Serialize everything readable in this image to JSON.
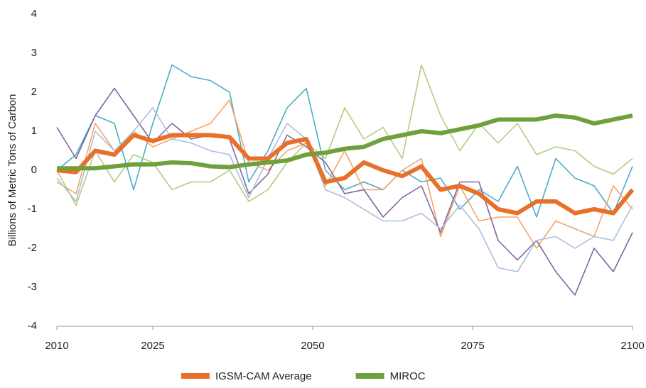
{
  "chart_data": {
    "type": "line",
    "y_label": "Billions of Metric Tons of Carbon",
    "x": [
      2010,
      2013,
      2016,
      2019,
      2022,
      2025,
      2028,
      2031,
      2034,
      2037,
      2040,
      2043,
      2046,
      2049,
      2052,
      2055,
      2058,
      2061,
      2064,
      2067,
      2070,
      2073,
      2076,
      2079,
      2082,
      2085,
      2088,
      2091,
      2094,
      2097,
      2100
    ],
    "series": [
      {
        "color": "#4bacc6",
        "values": [
          0,
          0.4,
          1.4,
          1.2,
          -0.5,
          1.2,
          2.7,
          2.4,
          2.3,
          2.0,
          -0.3,
          0.5,
          1.6,
          2.1,
          0,
          -0.5,
          -0.3,
          -0.5,
          0,
          -0.3,
          -0.2,
          -1.0,
          -0.5,
          -0.8,
          0.1,
          -1.2,
          0.3,
          -0.2,
          -0.4,
          -1.1,
          0.1
        ]
      },
      {
        "color": "#f5a46a",
        "values": [
          -0.3,
          -0.6,
          1.2,
          0.5,
          1.0,
          0.6,
          0.8,
          1.0,
          1.2,
          1.8,
          0.2,
          0,
          0.5,
          0.7,
          -0.4,
          0.5,
          -0.5,
          -0.5,
          0,
          0.3,
          -1.7,
          -0.4,
          -1.3,
          -1.2,
          -1.2,
          -2.0,
          -1.3,
          -1.5,
          -1.7,
          -0.4,
          -1.0
        ]
      },
      {
        "color": "#8064a2",
        "values": [
          1.1,
          0.3,
          1.4,
          2.1,
          1.4,
          0.7,
          1.2,
          0.8,
          0.9,
          0.8,
          -0.6,
          -0.1,
          0.9,
          0.6,
          0.2,
          -0.6,
          -0.5,
          -1.2,
          -0.7,
          -0.4,
          -1.6,
          -0.3,
          -0.3,
          -1.8,
          -2.3,
          -1.8,
          -2.6,
          -3.2,
          -2.0,
          -2.6,
          -1.6
        ]
      },
      {
        "color": "#a9bfdc",
        "values": [
          -0.2,
          -0.8,
          1.0,
          0.5,
          1.0,
          1.6,
          0.8,
          0.7,
          0.5,
          0.4,
          -0.7,
          0.3,
          1.2,
          0.8,
          -0.5,
          -0.7,
          -1.0,
          -1.3,
          -1.3,
          -1.1,
          -1.5,
          -0.9,
          -1.5,
          -2.5,
          -2.6,
          -1.8,
          -1.7,
          -2.0,
          -1.7,
          -1.8,
          -0.9
        ]
      },
      {
        "color": "#b3cc80",
        "values": [
          0,
          -0.9,
          0.5,
          -0.3,
          0.4,
          0.2,
          -0.5,
          -0.3,
          -0.3,
          0.0,
          -0.8,
          -0.5,
          0.2,
          0.7,
          0.3,
          1.6,
          0.8,
          1.1,
          0.3,
          2.7,
          1.4,
          0.5,
          1.2,
          0.7,
          1.2,
          0.4,
          0.6,
          0.5,
          0.1,
          -0.1,
          0.3
        ]
      },
      {
        "name": "IGSM-CAM Average",
        "color": "#e8702a",
        "values": [
          0,
          -0.05,
          0.5,
          0.4,
          0.9,
          0.75,
          0.9,
          0.9,
          0.9,
          0.85,
          0.3,
          0.3,
          0.7,
          0.8,
          -0.3,
          -0.2,
          0.2,
          0,
          -0.15,
          0.1,
          -0.5,
          -0.4,
          -0.6,
          -1.0,
          -1.1,
          -0.8,
          -0.8,
          -1.1,
          -1.0,
          -1.1,
          -0.5
        ]
      },
      {
        "name": "MIROC",
        "color": "#70a03c",
        "values": [
          0.05,
          0.05,
          0.05,
          0.1,
          0.15,
          0.15,
          0.2,
          0.18,
          0.1,
          0.08,
          0.15,
          0.2,
          0.25,
          0.4,
          0.45,
          0.55,
          0.6,
          0.8,
          0.9,
          1.0,
          0.95,
          1.05,
          1.15,
          1.3,
          1.3,
          1.3,
          1.4,
          1.35,
          1.2,
          1.3,
          1.4
        ]
      }
    ],
    "xlim": [
      2010,
      2100
    ],
    "xticks": [
      2010,
      2025,
      2050,
      2075,
      2100
    ],
    "ylim": [
      -4,
      4
    ],
    "yticks": [
      -4,
      -3,
      -2,
      -1,
      0,
      1,
      2,
      3,
      4
    ],
    "grid": false,
    "legend": "bottom"
  }
}
